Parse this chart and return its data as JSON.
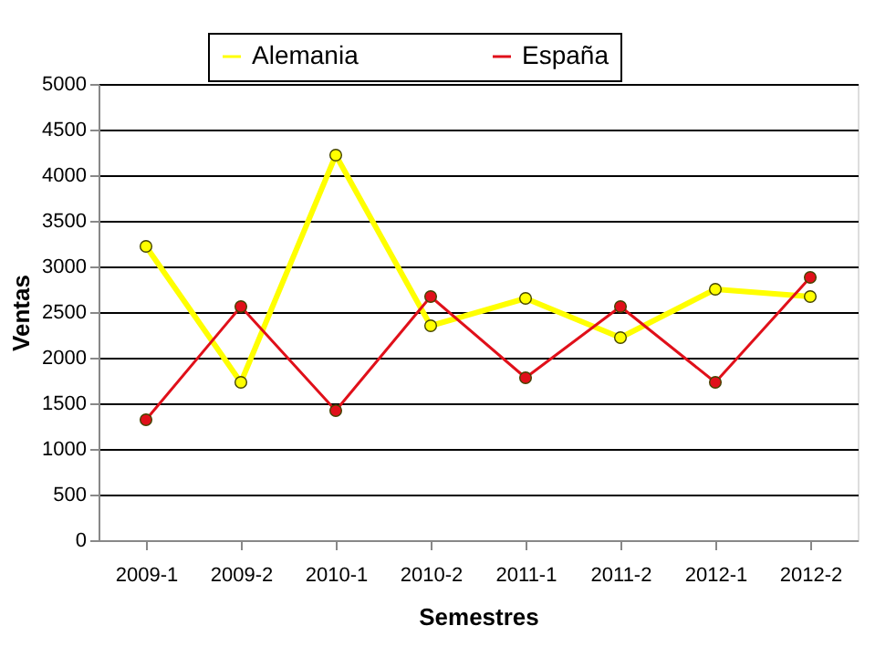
{
  "chart_data": {
    "type": "line",
    "xlabel": "Semestres",
    "ylabel": "Ventas",
    "categories": [
      "2009-1",
      "2009-2",
      "2010-1",
      "2010-2",
      "2011-1",
      "2011-2",
      "2012-1",
      "2012-2"
    ],
    "series": [
      {
        "name": "Alemania",
        "color": "#ffff00",
        "values": [
          3220,
          1730,
          4220,
          2350,
          2650,
          2220,
          2750,
          2670
        ]
      },
      {
        "name": "España",
        "color": "#e0101a",
        "values": [
          1320,
          2560,
          1420,
          2670,
          1780,
          2560,
          1730,
          2880
        ]
      }
    ],
    "ylim": [
      0,
      5000
    ],
    "yticks": [
      0,
      500,
      1000,
      1500,
      2000,
      2500,
      3000,
      3500,
      4000,
      4500,
      5000
    ],
    "grid": "y",
    "legend": "top",
    "marker": "circle",
    "line_style": "solid"
  }
}
